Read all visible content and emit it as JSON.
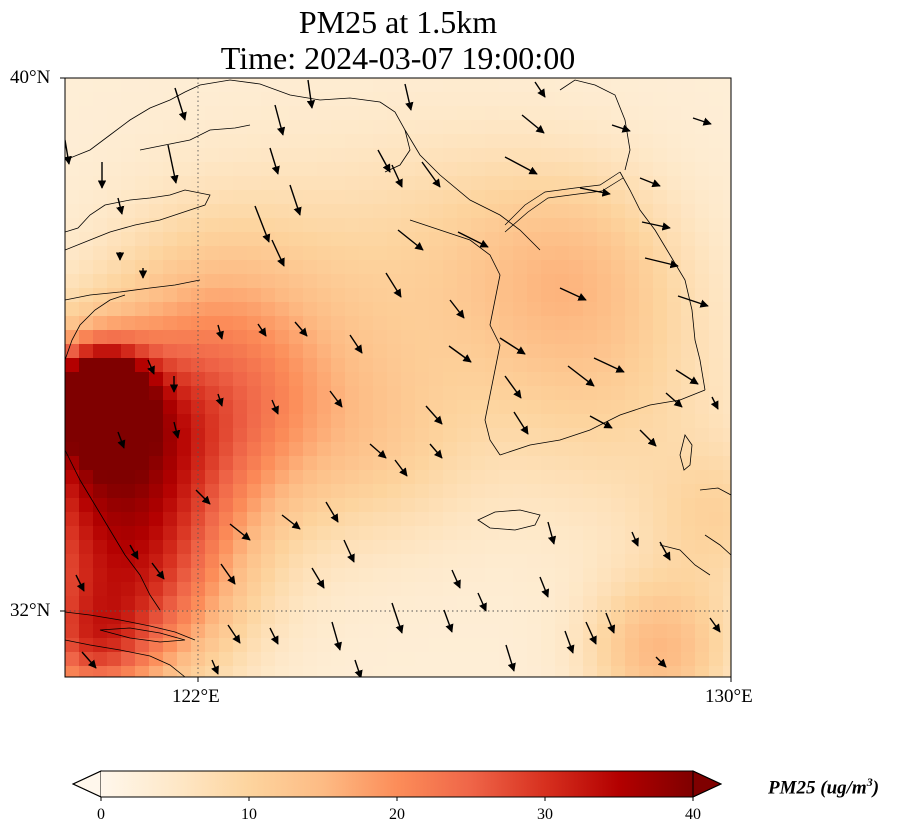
{
  "title_line1": "PM25 at 1.5km",
  "title_line2": "Time: 2024-03-07 19:00:00",
  "lat_ticks": [
    "40°N",
    "32°N"
  ],
  "lon_ticks": [
    "122°E",
    "130°E"
  ],
  "colorbar": {
    "label_main": "PM25 (ug/m",
    "label_exp": "3",
    "label_close": ")",
    "ticks": [
      "0",
      "10",
      "20",
      "30",
      "40"
    ],
    "min": 0,
    "max": 40,
    "colormap": "OrRd",
    "colors": [
      "#fff7ec",
      "#fee8c8",
      "#fdd49e",
      "#fdbb84",
      "#fc8d59",
      "#ef6548",
      "#d7301f",
      "#b30000",
      "#7f0000"
    ],
    "extend": "both"
  },
  "map": {
    "projection": "lat-lon",
    "lon_range": [
      120,
      130
    ],
    "lat_range": [
      31,
      40
    ],
    "gridlines": {
      "lons": [
        122
      ],
      "lats": [
        32
      ],
      "style": "dotted"
    },
    "variable": "PM25",
    "level": "1.5km",
    "wind_vectors": true
  }
}
